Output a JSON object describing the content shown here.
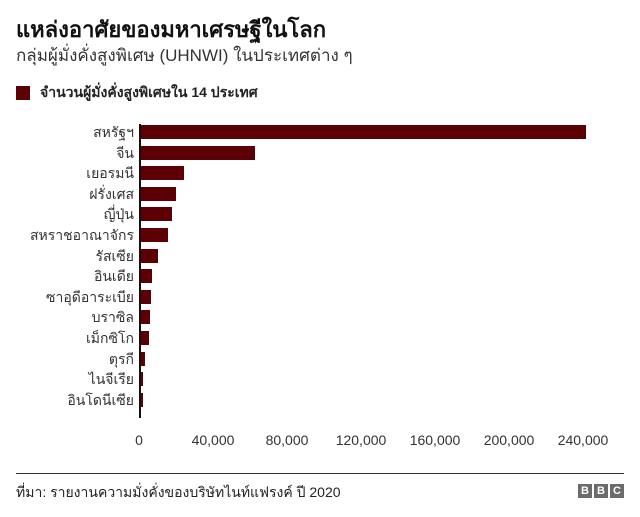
{
  "header": {
    "title": "แหล่งอาศัยของมหาเศรษฐีในโลก",
    "subtitle": "กลุ่มผู้มั่งคั่งสูงพิเศษ (UHNWI) ในประเทศต่าง ๆ"
  },
  "legend": {
    "label": "จำนวนผู้มั่งคั่งสูงพิเศษใน 14 ประเทศ",
    "color": "#5c0006"
  },
  "footer": {
    "source": "ที่มา: รายงานความมั่งคั่งของบริษัทไนท์แฟรงค์ ปี 2020",
    "logo": [
      "B",
      "B",
      "C"
    ]
  },
  "chart_data": {
    "type": "bar",
    "orientation": "horizontal",
    "title": "แหล่งอาศัยของมหาเศรษฐีในโลก",
    "subtitle": "กลุ่มผู้มั่งคั่งสูงพิเศษ (UHNWI) ในประเทศต่าง ๆ",
    "xlabel": "",
    "ylabel": "",
    "xlim": [
      0,
      240000
    ],
    "grid": false,
    "legend_position": "top-left",
    "x_ticks": [
      "0",
      "40,000",
      "80,000",
      "120,000",
      "160,000",
      "200,000",
      "240,000"
    ],
    "x_tick_values": [
      0,
      40000,
      80000,
      120000,
      160000,
      200000,
      240000
    ],
    "categories": [
      "สหรัฐฯ",
      "จีน",
      "เยอรมนี",
      "ฝรั่งเศส",
      "ญี่ปุ่น",
      "สหราชอาณาจักร",
      "รัสเซีย",
      "อินเดีย",
      "ซาอุดีอาระเบีย",
      "บราซิล",
      "เม็กซิโก",
      "ตุรกี",
      "ไนจีเรีย",
      "อินโดนีเซีย"
    ],
    "series": [
      {
        "name": "จำนวนผู้มั่งคั่งสูงพิเศษใน 14 ประเทศ",
        "color": "#5c0006",
        "values": [
          240600,
          61600,
          23100,
          19000,
          17000,
          14500,
          9000,
          6000,
          5500,
          5000,
          4500,
          2000,
          500,
          500
        ]
      }
    ],
    "source": "ที่มา: รายงานความมั่งคั่งของบริษัทไนท์แฟรงค์ ปี 2020"
  }
}
